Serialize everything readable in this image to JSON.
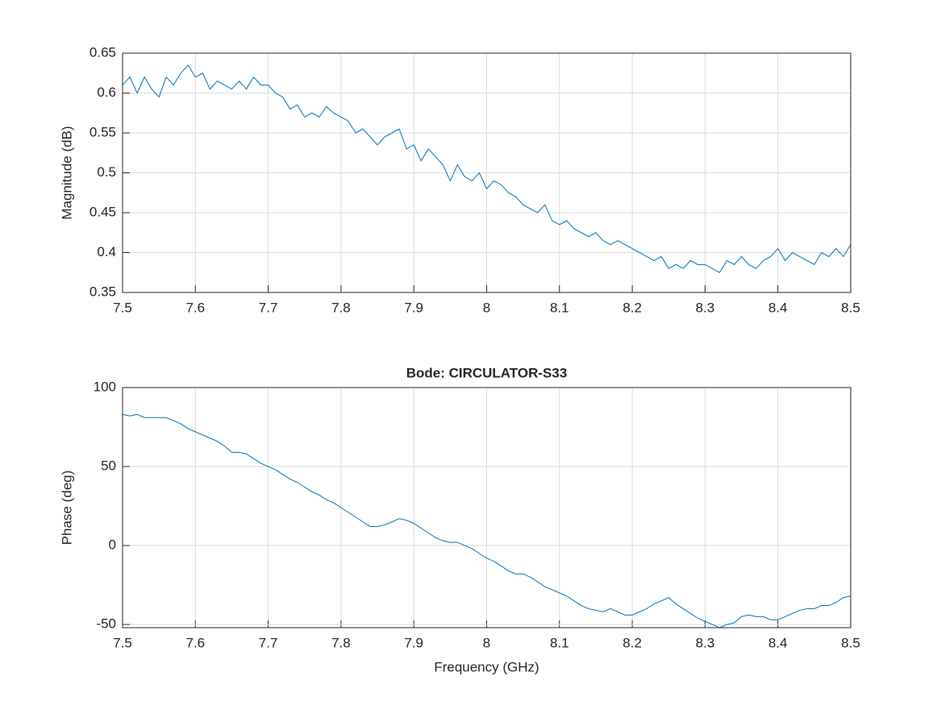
{
  "chart_data": [
    {
      "type": "line",
      "ylabel": "Magnitude (dB)",
      "color": "#0072bd",
      "grid": true,
      "xlim": [
        7.5,
        8.5
      ],
      "xticks": [
        7.5,
        7.6,
        7.7,
        7.8,
        7.9,
        8,
        8.1,
        8.2,
        8.3,
        8.4,
        8.5
      ],
      "ylim": [
        0.35,
        0.65
      ],
      "yticks": [
        0.35,
        0.4,
        0.45,
        0.5,
        0.55,
        0.6,
        0.65
      ],
      "x": [
        7.5,
        7.51,
        7.52,
        7.53,
        7.54,
        7.55,
        7.56,
        7.57,
        7.58,
        7.59,
        7.6,
        7.61,
        7.62,
        7.63,
        7.64,
        7.65,
        7.66,
        7.67,
        7.68,
        7.69,
        7.7,
        7.71,
        7.72,
        7.73,
        7.74,
        7.75,
        7.76,
        7.77,
        7.78,
        7.79,
        7.8,
        7.81,
        7.82,
        7.83,
        7.84,
        7.85,
        7.86,
        7.87,
        7.88,
        7.89,
        7.9,
        7.91,
        7.92,
        7.93,
        7.94,
        7.95,
        7.96,
        7.97,
        7.98,
        7.99,
        8,
        8.01,
        8.02,
        8.03,
        8.04,
        8.05,
        8.06,
        8.07,
        8.08,
        8.09,
        8.1,
        8.11,
        8.12,
        8.13,
        8.14,
        8.15,
        8.16,
        8.17,
        8.18,
        8.19,
        8.2,
        8.21,
        8.22,
        8.23,
        8.24,
        8.25,
        8.26,
        8.27,
        8.28,
        8.29,
        8.3,
        8.31,
        8.32,
        8.33,
        8.34,
        8.35,
        8.36,
        8.37,
        8.38,
        8.39,
        8.4,
        8.41,
        8.42,
        8.43,
        8.44,
        8.45,
        8.46,
        8.47,
        8.48,
        8.49,
        8.5
      ],
      "values": [
        0.61,
        0.62,
        0.6,
        0.62,
        0.605,
        0.595,
        0.62,
        0.61,
        0.625,
        0.635,
        0.62,
        0.625,
        0.605,
        0.615,
        0.61,
        0.605,
        0.615,
        0.605,
        0.62,
        0.61,
        0.61,
        0.6,
        0.595,
        0.58,
        0.585,
        0.57,
        0.575,
        0.57,
        0.583,
        0.575,
        0.57,
        0.565,
        0.55,
        0.555,
        0.545,
        0.535,
        0.545,
        0.55,
        0.555,
        0.53,
        0.535,
        0.515,
        0.53,
        0.52,
        0.51,
        0.49,
        0.51,
        0.495,
        0.49,
        0.5,
        0.48,
        0.49,
        0.485,
        0.475,
        0.47,
        0.46,
        0.455,
        0.45,
        0.46,
        0.44,
        0.435,
        0.44,
        0.43,
        0.425,
        0.42,
        0.425,
        0.415,
        0.41,
        0.415,
        0.41,
        0.405,
        0.4,
        0.395,
        0.39,
        0.395,
        0.38,
        0.385,
        0.38,
        0.39,
        0.385,
        0.385,
        0.38,
        0.375,
        0.39,
        0.385,
        0.395,
        0.385,
        0.38,
        0.39,
        0.395,
        0.405,
        0.39,
        0.4,
        0.395,
        0.39,
        0.385,
        0.4,
        0.395,
        0.405,
        0.395,
        0.41
      ]
    },
    {
      "type": "line",
      "title": "Bode: CIRCULATOR-S33",
      "xlabel": "Frequency (GHz)",
      "ylabel": "Phase (deg)",
      "color": "#0072bd",
      "grid": true,
      "xlim": [
        7.5,
        8.5
      ],
      "xticks": [
        7.5,
        7.6,
        7.7,
        7.8,
        7.9,
        8,
        8.1,
        8.2,
        8.3,
        8.4,
        8.5
      ],
      "ylim": [
        -52,
        100
      ],
      "yticks": [
        -50,
        0,
        50,
        100
      ],
      "x": [
        7.5,
        7.51,
        7.52,
        7.53,
        7.54,
        7.55,
        7.56,
        7.57,
        7.58,
        7.59,
        7.6,
        7.61,
        7.62,
        7.63,
        7.64,
        7.65,
        7.66,
        7.67,
        7.68,
        7.69,
        7.7,
        7.71,
        7.72,
        7.73,
        7.74,
        7.75,
        7.76,
        7.77,
        7.78,
        7.79,
        7.8,
        7.81,
        7.82,
        7.83,
        7.84,
        7.85,
        7.86,
        7.87,
        7.88,
        7.89,
        7.9,
        7.91,
        7.92,
        7.93,
        7.94,
        7.95,
        7.96,
        7.97,
        7.98,
        7.99,
        8,
        8.01,
        8.02,
        8.03,
        8.04,
        8.05,
        8.06,
        8.07,
        8.08,
        8.09,
        8.1,
        8.11,
        8.12,
        8.13,
        8.14,
        8.15,
        8.16,
        8.17,
        8.18,
        8.19,
        8.2,
        8.21,
        8.22,
        8.23,
        8.24,
        8.25,
        8.26,
        8.27,
        8.28,
        8.29,
        8.3,
        8.31,
        8.32,
        8.33,
        8.34,
        8.35,
        8.36,
        8.37,
        8.38,
        8.39,
        8.4,
        8.41,
        8.42,
        8.43,
        8.44,
        8.45,
        8.46,
        8.47,
        8.48,
        8.49,
        8.5
      ],
      "values": [
        83,
        82,
        83,
        81,
        81,
        81,
        81,
        79,
        77,
        74,
        72,
        70,
        68,
        66,
        63,
        59,
        59,
        58,
        55,
        52,
        50,
        48,
        45,
        42,
        40,
        37,
        34,
        32,
        29,
        27,
        24,
        21,
        18,
        15,
        12,
        12,
        13,
        15,
        17,
        16,
        14,
        11,
        8,
        5,
        3,
        2,
        2,
        0,
        -2,
        -5,
        -8,
        -10,
        -13,
        -16,
        -18,
        -18,
        -20,
        -23,
        -26,
        -28,
        -30,
        -32,
        -35,
        -38,
        -40,
        -41,
        -42,
        -40,
        -42,
        -44,
        -44,
        -42,
        -40,
        -37,
        -35,
        -33,
        -37,
        -40,
        -43,
        -46,
        -48,
        -50,
        -52,
        -50,
        -49,
        -45,
        -44,
        -45,
        -45,
        -47,
        -47,
        -45,
        -43,
        -41,
        -40,
        -40,
        -38,
        -38,
        -36,
        -33,
        -32
      ]
    }
  ]
}
